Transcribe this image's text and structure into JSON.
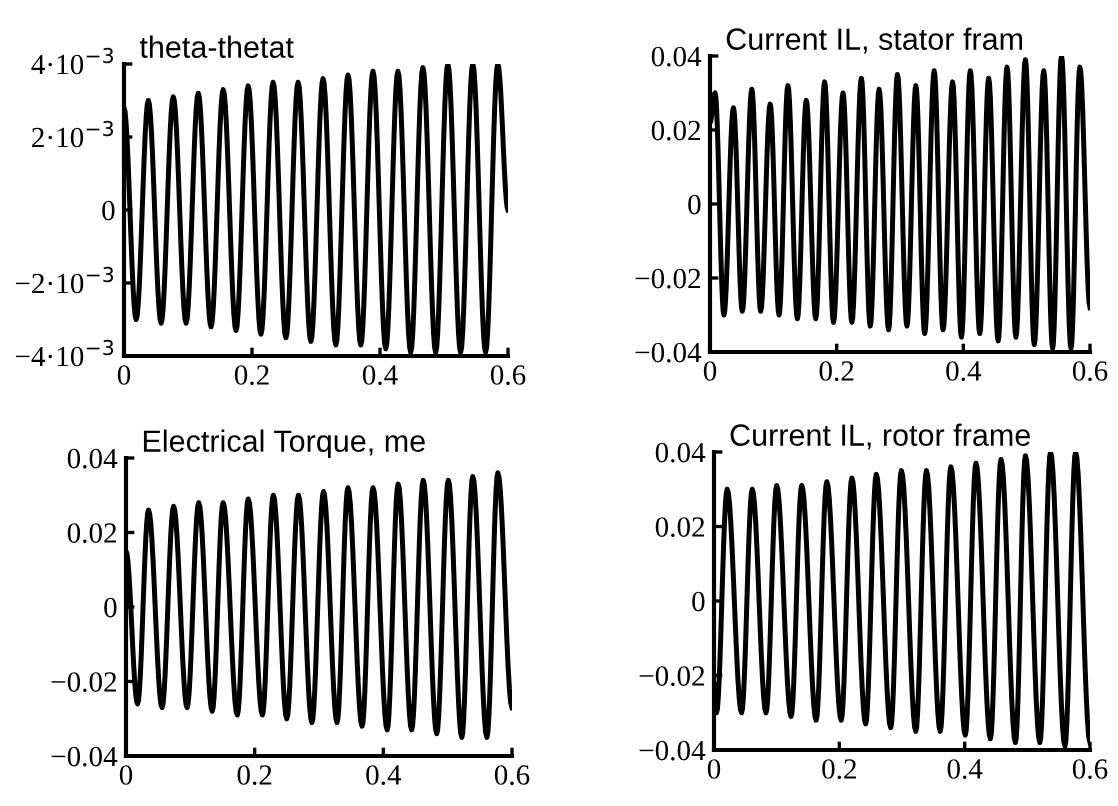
{
  "chart_data": [
    {
      "type": "line",
      "title": "theta-thetat",
      "x": [
        0,
        0.019,
        0.038,
        0.058,
        0.077,
        0.097,
        0.116,
        0.136,
        0.155,
        0.175,
        0.194,
        0.214,
        0.233,
        0.253,
        0.272,
        0.292,
        0.311,
        0.331,
        0.35,
        0.37,
        0.389,
        0.409,
        0.428,
        0.448,
        0.467,
        0.487,
        0.506,
        0.526,
        0.545,
        0.565,
        0.584,
        0.6
      ],
      "series": [
        {
          "color": "#000000",
          "values": [
            0.0028,
            -0.003,
            0.003,
            -0.0031,
            0.0031,
            -0.0031,
            0.0032,
            -0.0032,
            0.0033,
            -0.0033,
            0.0034,
            -0.0034,
            0.0035,
            -0.0035,
            0.0035,
            -0.0036,
            0.0036,
            -0.0037,
            0.0037,
            -0.0037,
            0.0038,
            -0.0038,
            0.0038,
            -0.0039,
            0.0039,
            -0.0039,
            0.004,
            -0.0039,
            0.004,
            -0.0039,
            0.004,
            0.0
          ]
        }
      ],
      "xlim": [
        0,
        0.6
      ],
      "xticks": [
        0,
        0.2,
        0.4,
        0.6
      ],
      "ylim": [
        -0.004,
        0.004
      ],
      "yticks": [
        {
          "value": -0.004,
          "label": "−4·10$^{−3}$"
        },
        {
          "value": -0.002,
          "label": "−2·10$^{−3}$"
        },
        0,
        {
          "value": 0.002,
          "label": "2·10$^{−3}$"
        },
        {
          "value": 0.004,
          "label": "4·10$^{−3}$"
        }
      ],
      "grid": false,
      "legend": false
    },
    {
      "type": "line",
      "title": "Current IL, stator fram",
      "x": [
        0,
        0.008,
        0.022,
        0.037,
        0.051,
        0.066,
        0.08,
        0.095,
        0.109,
        0.123,
        0.138,
        0.152,
        0.167,
        0.181,
        0.195,
        0.21,
        0.224,
        0.239,
        0.253,
        0.267,
        0.282,
        0.296,
        0.311,
        0.325,
        0.339,
        0.354,
        0.368,
        0.383,
        0.397,
        0.411,
        0.426,
        0.44,
        0.455,
        0.469,
        0.483,
        0.498,
        0.512,
        0.527,
        0.541,
        0.555,
        0.57,
        0.584,
        0.6
      ],
      "series": [
        {
          "color": "#000000",
          "values": [
            0.022,
            0.03,
            -0.03,
            0.026,
            -0.029,
            0.031,
            -0.029,
            0.027,
            -0.03,
            0.032,
            -0.031,
            0.028,
            -0.031,
            0.033,
            -0.032,
            0.03,
            -0.032,
            0.034,
            -0.033,
            0.031,
            -0.034,
            0.035,
            -0.033,
            0.032,
            -0.035,
            0.036,
            -0.034,
            0.033,
            -0.036,
            0.036,
            -0.035,
            0.034,
            -0.037,
            0.037,
            -0.036,
            0.039,
            -0.038,
            0.036,
            -0.039,
            0.04,
            -0.039,
            0.037,
            -0.028
          ]
        }
      ],
      "xlim": [
        0,
        0.6
      ],
      "xticks": [
        0,
        0.2,
        0.4,
        0.6
      ],
      "ylim": [
        -0.04,
        0.04
      ],
      "yticks": [
        {
          "value": -0.04,
          "label": "−0.04"
        },
        {
          "value": -0.02,
          "label": "−0.02"
        },
        0,
        0.02,
        0.04
      ],
      "grid": false,
      "legend": false
    },
    {
      "type": "line",
      "title": "Electrical Torque, me",
      "x": [
        0,
        0.018,
        0.035,
        0.056,
        0.074,
        0.095,
        0.113,
        0.134,
        0.151,
        0.173,
        0.19,
        0.212,
        0.229,
        0.25,
        0.268,
        0.289,
        0.307,
        0.328,
        0.345,
        0.367,
        0.384,
        0.406,
        0.423,
        0.444,
        0.462,
        0.483,
        0.501,
        0.522,
        0.539,
        0.561,
        0.578,
        0.6
      ],
      "series": [
        {
          "color": "#000000",
          "values": [
            0.015,
            -0.026,
            0.026,
            -0.027,
            0.027,
            -0.027,
            0.028,
            -0.028,
            0.028,
            -0.029,
            0.029,
            -0.029,
            0.03,
            -0.03,
            0.03,
            -0.031,
            0.031,
            -0.031,
            0.032,
            -0.032,
            0.032,
            -0.033,
            0.033,
            -0.033,
            0.034,
            -0.034,
            0.034,
            -0.035,
            0.035,
            -0.035,
            0.036,
            -0.027
          ]
        }
      ],
      "xlim": [
        0,
        0.6
      ],
      "xticks": [
        0,
        0.2,
        0.4,
        0.6
      ],
      "ylim": [
        -0.04,
        0.04
      ],
      "yticks": [
        {
          "value": -0.04,
          "label": "−0.04"
        },
        {
          "value": -0.02,
          "label": "−0.02"
        },
        0,
        0.02,
        0.04
      ],
      "grid": false,
      "legend": false
    },
    {
      "type": "line",
      "title": "Current IL, rotor frame",
      "x": [
        0,
        0.004,
        0.021,
        0.044,
        0.061,
        0.083,
        0.1,
        0.123,
        0.14,
        0.163,
        0.18,
        0.203,
        0.22,
        0.242,
        0.259,
        0.282,
        0.299,
        0.322,
        0.339,
        0.361,
        0.378,
        0.401,
        0.418,
        0.441,
        0.458,
        0.481,
        0.497,
        0.52,
        0.537,
        0.56,
        0.577,
        0.6
      ],
      "series": [
        {
          "color": "#000000",
          "values": [
            -0.022,
            -0.03,
            0.03,
            -0.03,
            0.03,
            -0.03,
            0.031,
            -0.031,
            0.031,
            -0.032,
            0.032,
            -0.032,
            0.033,
            -0.033,
            0.034,
            -0.034,
            0.035,
            -0.035,
            0.035,
            -0.035,
            0.036,
            -0.036,
            0.037,
            -0.037,
            0.038,
            -0.038,
            0.039,
            -0.038,
            0.04,
            -0.039,
            0.04,
            -0.038
          ]
        }
      ],
      "xlim": [
        0,
        0.6
      ],
      "xticks": [
        0,
        0.2,
        0.4,
        0.6
      ],
      "ylim": [
        -0.04,
        0.04
      ],
      "yticks": [
        {
          "value": -0.04,
          "label": "−0.04"
        },
        {
          "value": -0.02,
          "label": "−0.02"
        },
        0,
        0.02,
        0.04
      ],
      "grid": false,
      "legend": false
    }
  ]
}
